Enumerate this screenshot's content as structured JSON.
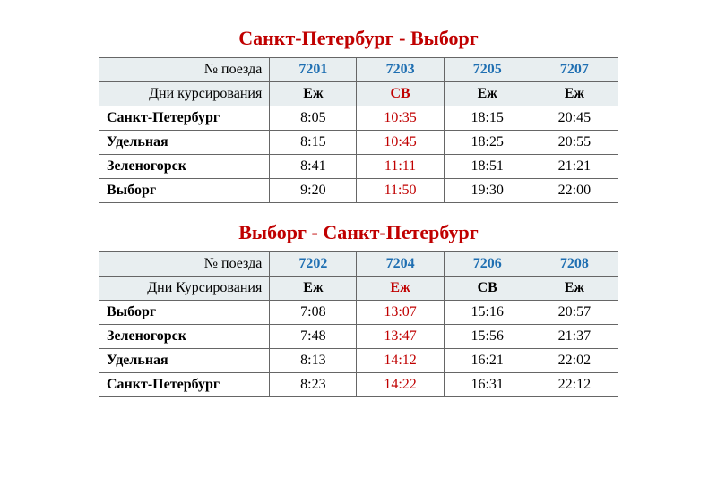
{
  "tables": [
    {
      "title": "Санкт-Петербург - Выборг",
      "row_label_train": "№ поезда",
      "row_label_days": "Дни курсирования",
      "trains": [
        "7201",
        "7203",
        "7205",
        "7207"
      ],
      "days": [
        {
          "text": "Еж",
          "red": false
        },
        {
          "text": "СВ",
          "red": true
        },
        {
          "text": "Еж",
          "red": false
        },
        {
          "text": "Еж",
          "red": false
        }
      ],
      "stations": [
        {
          "name": "Санкт-Петербург",
          "times": [
            {
              "text": "8:05",
              "red": false
            },
            {
              "text": "10:35",
              "red": true
            },
            {
              "text": "18:15",
              "red": false
            },
            {
              "text": "20:45",
              "red": false
            }
          ]
        },
        {
          "name": "Удельная",
          "times": [
            {
              "text": "8:15",
              "red": false
            },
            {
              "text": "10:45",
              "red": true
            },
            {
              "text": "18:25",
              "red": false
            },
            {
              "text": "20:55",
              "red": false
            }
          ]
        },
        {
          "name": "Зеленогорск",
          "times": [
            {
              "text": "8:41",
              "red": false
            },
            {
              "text": "11:11",
              "red": true
            },
            {
              "text": "18:51",
              "red": false
            },
            {
              "text": "21:21",
              "red": false
            }
          ]
        },
        {
          "name": "Выборг",
          "times": [
            {
              "text": "9:20",
              "red": false
            },
            {
              "text": "11:50",
              "red": true
            },
            {
              "text": "19:30",
              "red": false
            },
            {
              "text": "22:00",
              "red": false
            }
          ]
        }
      ]
    },
    {
      "title": "Выборг - Санкт-Петербург",
      "row_label_train": "№ поезда",
      "row_label_days": "Дни Курсирования",
      "trains": [
        "7202",
        "7204",
        "7206",
        "7208"
      ],
      "days": [
        {
          "text": "Еж",
          "red": false
        },
        {
          "text": "Еж",
          "red": true
        },
        {
          "text": "СВ",
          "red": false
        },
        {
          "text": "Еж",
          "red": false
        }
      ],
      "stations": [
        {
          "name": "Выборг",
          "times": [
            {
              "text": "7:08",
              "red": false
            },
            {
              "text": "13:07",
              "red": true
            },
            {
              "text": "15:16",
              "red": false
            },
            {
              "text": "20:57",
              "red": false
            }
          ]
        },
        {
          "name": "Зеленогорск",
          "times": [
            {
              "text": "7:48",
              "red": false
            },
            {
              "text": "13:47",
              "red": true
            },
            {
              "text": "15:56",
              "red": false
            },
            {
              "text": "21:37",
              "red": false
            }
          ]
        },
        {
          "name": "Удельная",
          "times": [
            {
              "text": "8:13",
              "red": false
            },
            {
              "text": "14:12",
              "red": true
            },
            {
              "text": "16:21",
              "red": false
            },
            {
              "text": "22:02",
              "red": false
            }
          ]
        },
        {
          "name": "Санкт-Петербург",
          "times": [
            {
              "text": "8:23",
              "red": false
            },
            {
              "text": "14:22",
              "red": true
            },
            {
              "text": "16:31",
              "red": false
            },
            {
              "text": "22:12",
              "red": false
            }
          ]
        }
      ]
    }
  ]
}
